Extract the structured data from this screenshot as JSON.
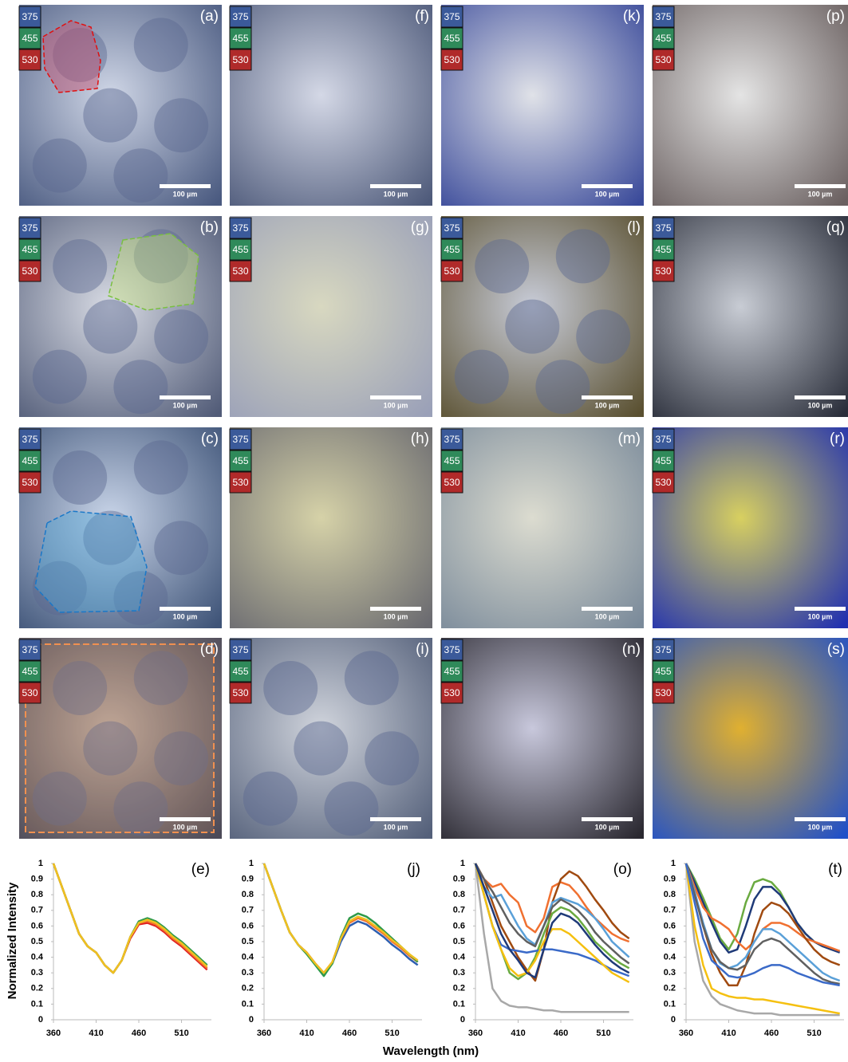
{
  "panels": [
    {
      "label": "(a)",
      "bands": [
        "375",
        "455",
        "530"
      ],
      "scale_bar": "100 µm"
    },
    {
      "label": "(b)",
      "bands": [
        "375",
        "455",
        "530"
      ],
      "scale_bar": "100 µm"
    },
    {
      "label": "(c)",
      "bands": [
        "375",
        "455",
        "530"
      ],
      "scale_bar": "100 µm"
    },
    {
      "label": "(d)",
      "bands": [
        "375",
        "455",
        "530"
      ],
      "scale_bar": "100 µm"
    },
    {
      "label": "(f)",
      "bands": [
        "375",
        "455",
        "530"
      ],
      "scale_bar": "100 µm"
    },
    {
      "label": "(g)",
      "bands": [
        "375",
        "455",
        "530"
      ],
      "scale_bar": "100 µm"
    },
    {
      "label": "(h)",
      "bands": [
        "375",
        "455",
        "530"
      ],
      "scale_bar": "100 µm"
    },
    {
      "label": "(i)",
      "bands": [
        "375",
        "455",
        "530"
      ],
      "scale_bar": "100 µm"
    },
    {
      "label": "(k)",
      "bands": [
        "375",
        "455",
        "530"
      ],
      "scale_bar": "100 µm"
    },
    {
      "label": "(l)",
      "bands": [
        "375",
        "455",
        "530"
      ],
      "scale_bar": "100 µm"
    },
    {
      "label": "(m)",
      "bands": [
        "375",
        "455",
        "530"
      ],
      "scale_bar": "100 µm"
    },
    {
      "label": "(n)",
      "bands": [
        "375",
        "455",
        "530"
      ],
      "scale_bar": "100 µm"
    },
    {
      "label": "(p)",
      "bands": [
        "375",
        "455",
        "530"
      ],
      "scale_bar": "100 µm"
    },
    {
      "label": "(q)",
      "bands": [
        "375",
        "455",
        "530"
      ],
      "scale_bar": "100 µm"
    },
    {
      "label": "(r)",
      "bands": [
        "375",
        "455",
        "530"
      ],
      "scale_bar": "100 µm"
    },
    {
      "label": "(s)",
      "bands": [
        "375",
        "455",
        "530"
      ],
      "scale_bar": "100 µm"
    }
  ],
  "figure": {
    "y_label": "Normalized Intensity",
    "x_label": "Wavelength (nm)"
  },
  "chart_data": [
    {
      "type": "line",
      "annotation": "(e)",
      "x": [
        360,
        370,
        380,
        390,
        400,
        410,
        420,
        430,
        440,
        450,
        460,
        470,
        480,
        490,
        500,
        510,
        520,
        530,
        540
      ],
      "xlim": [
        360,
        545
      ],
      "xticks": [
        360,
        410,
        460,
        510
      ],
      "ylim": [
        0,
        1
      ],
      "yticks": [
        0,
        0.1,
        0.2,
        0.3,
        0.4,
        0.5,
        0.6,
        0.7,
        0.8,
        0.9,
        1
      ],
      "series": [
        {
          "color": "#e02020",
          "values": [
            1,
            0.85,
            0.7,
            0.55,
            0.47,
            0.43,
            0.35,
            0.3,
            0.38,
            0.52,
            0.61,
            0.62,
            0.6,
            0.56,
            0.51,
            0.47,
            0.42,
            0.37,
            0.32
          ]
        },
        {
          "color": "#f07030",
          "values": [
            1,
            0.85,
            0.7,
            0.55,
            0.47,
            0.43,
            0.35,
            0.3,
            0.38,
            0.53,
            0.62,
            0.63,
            0.61,
            0.57,
            0.52,
            0.48,
            0.43,
            0.38,
            0.33
          ]
        },
        {
          "color": "#2e9a4a",
          "values": [
            1,
            0.85,
            0.7,
            0.55,
            0.47,
            0.43,
            0.35,
            0.3,
            0.38,
            0.53,
            0.63,
            0.65,
            0.63,
            0.59,
            0.54,
            0.5,
            0.45,
            0.4,
            0.35
          ]
        },
        {
          "color": "#f0c020",
          "values": [
            1,
            0.85,
            0.7,
            0.55,
            0.47,
            0.43,
            0.35,
            0.3,
            0.38,
            0.53,
            0.62,
            0.64,
            0.62,
            0.58,
            0.53,
            0.49,
            0.44,
            0.39,
            0.34
          ]
        }
      ]
    },
    {
      "type": "line",
      "annotation": "(j)",
      "x": [
        360,
        370,
        380,
        390,
        400,
        410,
        420,
        430,
        440,
        450,
        460,
        470,
        480,
        490,
        500,
        510,
        520,
        530,
        540
      ],
      "xlim": [
        360,
        545
      ],
      "xticks": [
        360,
        410,
        460,
        510
      ],
      "ylim": [
        0,
        1
      ],
      "yticks": [
        0,
        0.1,
        0.2,
        0.3,
        0.4,
        0.5,
        0.6,
        0.7,
        0.8,
        0.9,
        1
      ],
      "series": [
        {
          "color": "#2e5fb0",
          "values": [
            1,
            0.85,
            0.7,
            0.56,
            0.48,
            0.43,
            0.36,
            0.3,
            0.36,
            0.5,
            0.6,
            0.63,
            0.61,
            0.57,
            0.53,
            0.48,
            0.44,
            0.39,
            0.35
          ]
        },
        {
          "color": "#f07030",
          "values": [
            1,
            0.85,
            0.7,
            0.56,
            0.48,
            0.43,
            0.36,
            0.3,
            0.37,
            0.52,
            0.62,
            0.65,
            0.63,
            0.59,
            0.55,
            0.5,
            0.46,
            0.41,
            0.37
          ]
        },
        {
          "color": "#2e9a4a",
          "values": [
            1,
            0.85,
            0.7,
            0.56,
            0.48,
            0.42,
            0.35,
            0.28,
            0.36,
            0.53,
            0.65,
            0.68,
            0.66,
            0.62,
            0.57,
            0.52,
            0.47,
            0.42,
            0.37
          ]
        },
        {
          "color": "#f0c020",
          "values": [
            1,
            0.85,
            0.7,
            0.56,
            0.48,
            0.43,
            0.36,
            0.3,
            0.37,
            0.52,
            0.63,
            0.66,
            0.64,
            0.6,
            0.56,
            0.51,
            0.47,
            0.42,
            0.38
          ]
        }
      ]
    },
    {
      "type": "line",
      "annotation": "(o)",
      "x": [
        360,
        370,
        380,
        390,
        400,
        410,
        420,
        430,
        440,
        450,
        460,
        470,
        480,
        490,
        500,
        510,
        520,
        530,
        540
      ],
      "xlim": [
        360,
        545
      ],
      "xticks": [
        360,
        410,
        460,
        510
      ],
      "ylim": [
        0,
        1
      ],
      "yticks": [
        0,
        0.1,
        0.2,
        0.3,
        0.4,
        0.5,
        0.6,
        0.7,
        0.8,
        0.9,
        1
      ],
      "series": [
        {
          "color": "#a8a8a8",
          "values": [
            1,
            0.55,
            0.2,
            0.12,
            0.09,
            0.08,
            0.08,
            0.07,
            0.06,
            0.06,
            0.05,
            0.05,
            0.05,
            0.05,
            0.05,
            0.05,
            0.05,
            0.05,
            0.05
          ]
        },
        {
          "color": "#f07030",
          "values": [
            1,
            0.9,
            0.85,
            0.87,
            0.8,
            0.75,
            0.6,
            0.56,
            0.65,
            0.85,
            0.88,
            0.86,
            0.8,
            0.72,
            0.65,
            0.6,
            0.55,
            0.52,
            0.5
          ]
        },
        {
          "color": "#a04a10",
          "values": [
            1,
            0.9,
            0.75,
            0.6,
            0.5,
            0.4,
            0.32,
            0.25,
            0.45,
            0.75,
            0.9,
            0.95,
            0.92,
            0.85,
            0.77,
            0.7,
            0.62,
            0.56,
            0.52
          ]
        },
        {
          "color": "#5aa0d8",
          "values": [
            1,
            0.85,
            0.78,
            0.8,
            0.7,
            0.6,
            0.52,
            0.48,
            0.6,
            0.75,
            0.78,
            0.76,
            0.74,
            0.7,
            0.65,
            0.58,
            0.5,
            0.45,
            0.4
          ]
        },
        {
          "color": "#6aaa40",
          "values": [
            1,
            0.8,
            0.6,
            0.45,
            0.3,
            0.26,
            0.3,
            0.4,
            0.55,
            0.68,
            0.72,
            0.7,
            0.65,
            0.58,
            0.5,
            0.45,
            0.4,
            0.36,
            0.33
          ]
        },
        {
          "color": "#606060",
          "values": [
            1,
            0.9,
            0.82,
            0.72,
            0.62,
            0.55,
            0.5,
            0.47,
            0.6,
            0.72,
            0.77,
            0.74,
            0.7,
            0.64,
            0.56,
            0.5,
            0.45,
            0.4,
            0.36
          ]
        },
        {
          "color": "#3a6ac8",
          "values": [
            1,
            0.8,
            0.6,
            0.48,
            0.45,
            0.44,
            0.43,
            0.44,
            0.45,
            0.45,
            0.44,
            0.43,
            0.42,
            0.4,
            0.38,
            0.35,
            0.32,
            0.3,
            0.28
          ]
        },
        {
          "color": "#f5c010",
          "values": [
            1,
            0.8,
            0.6,
            0.45,
            0.33,
            0.28,
            0.3,
            0.38,
            0.5,
            0.58,
            0.58,
            0.55,
            0.5,
            0.45,
            0.4,
            0.35,
            0.3,
            0.27,
            0.24
          ]
        },
        {
          "color": "#1f3a78",
          "values": [
            1,
            0.85,
            0.7,
            0.55,
            0.45,
            0.38,
            0.3,
            0.27,
            0.45,
            0.62,
            0.68,
            0.66,
            0.62,
            0.55,
            0.48,
            0.42,
            0.37,
            0.33,
            0.3
          ]
        }
      ]
    },
    {
      "type": "line",
      "annotation": "(t)",
      "x": [
        360,
        370,
        380,
        390,
        400,
        410,
        420,
        430,
        440,
        450,
        460,
        470,
        480,
        490,
        500,
        510,
        520,
        530,
        540
      ],
      "xlim": [
        360,
        545
      ],
      "xticks": [
        360,
        410,
        460,
        510
      ],
      "ylim": [
        0,
        1
      ],
      "yticks": [
        0,
        0.1,
        0.2,
        0.3,
        0.4,
        0.5,
        0.6,
        0.7,
        0.8,
        0.9,
        1
      ],
      "series": [
        {
          "color": "#a8a8a8",
          "values": [
            1,
            0.5,
            0.25,
            0.15,
            0.1,
            0.08,
            0.06,
            0.05,
            0.04,
            0.04,
            0.04,
            0.03,
            0.03,
            0.03,
            0.03,
            0.03,
            0.03,
            0.03,
            0.03
          ]
        },
        {
          "color": "#f5c010",
          "values": [
            1,
            0.6,
            0.35,
            0.2,
            0.17,
            0.15,
            0.14,
            0.14,
            0.13,
            0.13,
            0.12,
            0.11,
            0.1,
            0.09,
            0.08,
            0.07,
            0.06,
            0.05,
            0.04
          ]
        },
        {
          "color": "#6aaa40",
          "values": [
            1,
            0.9,
            0.78,
            0.65,
            0.52,
            0.45,
            0.55,
            0.75,
            0.88,
            0.9,
            0.88,
            0.82,
            0.72,
            0.62,
            0.55,
            0.5,
            0.47,
            0.45,
            0.44
          ]
        },
        {
          "color": "#1f3a78",
          "values": [
            1,
            0.88,
            0.75,
            0.62,
            0.5,
            0.43,
            0.45,
            0.6,
            0.77,
            0.85,
            0.85,
            0.8,
            0.72,
            0.62,
            0.55,
            0.5,
            0.47,
            0.45,
            0.43
          ]
        },
        {
          "color": "#f07030",
          "values": [
            1,
            0.85,
            0.72,
            0.65,
            0.62,
            0.58,
            0.5,
            0.45,
            0.5,
            0.58,
            0.62,
            0.62,
            0.6,
            0.56,
            0.52,
            0.5,
            0.48,
            0.46,
            0.44
          ]
        },
        {
          "color": "#a04a10",
          "values": [
            1,
            0.82,
            0.6,
            0.42,
            0.3,
            0.22,
            0.22,
            0.35,
            0.55,
            0.7,
            0.75,
            0.73,
            0.68,
            0.6,
            0.52,
            0.45,
            0.4,
            0.37,
            0.35
          ]
        },
        {
          "color": "#5aa0d8",
          "values": [
            1,
            0.82,
            0.62,
            0.45,
            0.36,
            0.33,
            0.35,
            0.4,
            0.5,
            0.58,
            0.58,
            0.55,
            0.5,
            0.45,
            0.4,
            0.35,
            0.3,
            0.27,
            0.25
          ]
        },
        {
          "color": "#606060",
          "values": [
            1,
            0.8,
            0.6,
            0.45,
            0.37,
            0.33,
            0.32,
            0.35,
            0.45,
            0.5,
            0.52,
            0.5,
            0.45,
            0.4,
            0.35,
            0.3,
            0.26,
            0.24,
            0.23
          ]
        },
        {
          "color": "#3a6ac8",
          "values": [
            1,
            0.75,
            0.52,
            0.38,
            0.33,
            0.28,
            0.27,
            0.28,
            0.3,
            0.33,
            0.35,
            0.35,
            0.33,
            0.3,
            0.28,
            0.26,
            0.24,
            0.23,
            0.22
          ]
        }
      ]
    }
  ]
}
